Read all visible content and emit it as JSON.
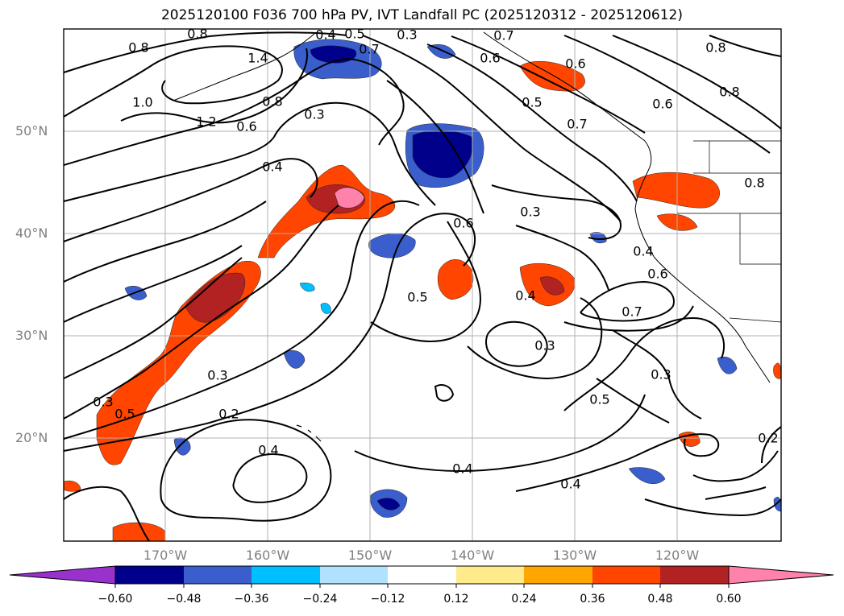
{
  "title": "2025120100 F036 700 hPa PV, IVT Landfall PC (2025120312 - 2025120612)",
  "lat_ticks": [
    "50°N",
    "40°N",
    "30°N",
    "20°N"
  ],
  "lon_ticks": [
    "170°W",
    "160°W",
    "150°W",
    "140°W",
    "130°W",
    "120°W"
  ],
  "colorbar": {
    "ticks": [
      "−0.60",
      "−0.48",
      "−0.36",
      "−0.24",
      "−0.12",
      "0.12",
      "0.24",
      "0.36",
      "0.48",
      "0.60"
    ],
    "colors": [
      "#9932cc",
      "#00008b",
      "#3a5fcd",
      "#00bfff",
      "#b0e2ff",
      "#ffffff",
      "#ffeb8c",
      "#ffa500",
      "#ff4500",
      "#b22222",
      "#ff82ab",
      "#ff82ab"
    ]
  },
  "contour_labels": [
    "0.8",
    "0.8",
    "1.4",
    "1.0",
    "1.2",
    "0.6",
    "0.8",
    "0.3",
    "0.5",
    "0.7",
    "0.4",
    "0.7",
    "0.6",
    "0.6",
    "0.5",
    "0.7",
    "0.6",
    "0.8",
    "0.8",
    "0.8",
    "0.4",
    "0.3",
    "0.6",
    "0.4",
    "0.6",
    "0.7",
    "0.5",
    "0.4",
    "0.3",
    "0.3",
    "0.5",
    "0.3",
    "0.3",
    "0.2",
    "0.4",
    "0.5",
    "0.4",
    "0.4",
    "0.2",
    "0.3"
  ],
  "grid": true,
  "shading_colors": {
    "positive": "#ff4500",
    "strong_positive": "#b22222",
    "max_positive": "#ff82ab",
    "negative": "#3a5fcd",
    "strong_negative": "#00008b",
    "light_negative": "#00bfff"
  }
}
